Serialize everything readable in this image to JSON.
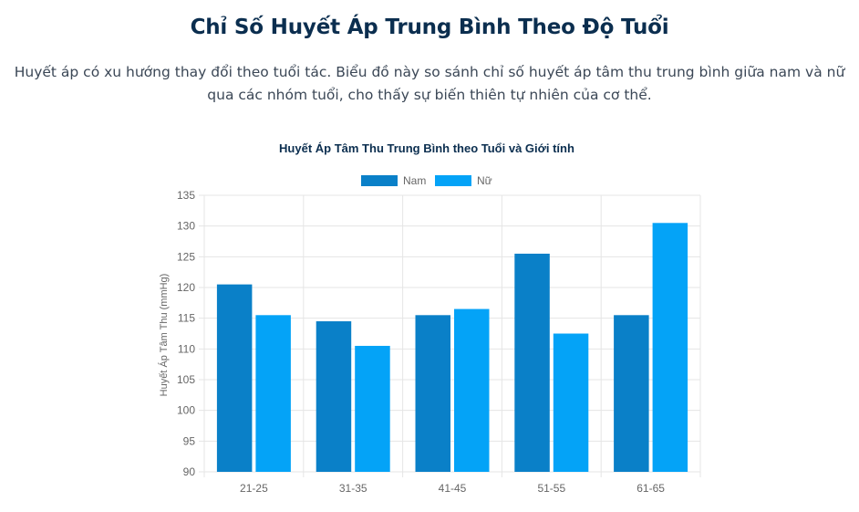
{
  "page": {
    "title": "Chỉ Số Huyết Áp Trung Bình Theo Độ Tuổi",
    "description": "Huyết áp có xu hướng thay đổi theo tuổi tác. Biểu đồ này so sánh chỉ số huyết áp tâm thu trung bình giữa nam và nữ qua các nhóm tuổi, cho thấy sự biến thiên tự nhiên của cơ thể."
  },
  "chart_data": {
    "type": "bar",
    "title": "Huyết Áp Tâm Thu Trung Bình theo Tuổi và Giới tính",
    "xlabel": "",
    "ylabel": "Huyết Áp Tâm Thu (mmHg)",
    "categories": [
      "21-25",
      "31-35",
      "41-45",
      "51-55",
      "61-65"
    ],
    "series": [
      {
        "name": "Nam",
        "color": "#0a80c8",
        "values": [
          120.5,
          114.5,
          115.5,
          125.5,
          115.5
        ]
      },
      {
        "name": "Nữ",
        "color": "#04a3f7",
        "values": [
          115.5,
          110.5,
          116.5,
          112.5,
          130.5
        ]
      }
    ],
    "ylim": [
      90,
      135
    ],
    "yticks": [
      90,
      95,
      100,
      105,
      110,
      115,
      120,
      125,
      130,
      135
    ],
    "grid": true,
    "legend": "top-center"
  }
}
